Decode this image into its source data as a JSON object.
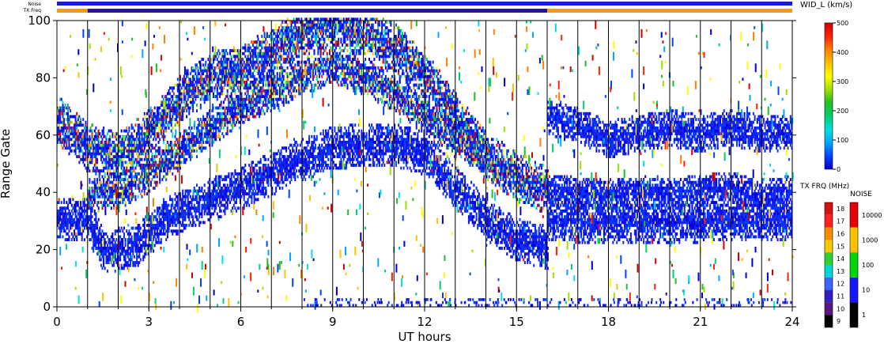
{
  "chart_data": {
    "type": "heatmap",
    "xlabel": "UT hours",
    "ylabel": "Range Gate",
    "xlim": [
      0,
      24
    ],
    "ylim": [
      0,
      100
    ],
    "x_ticks": [
      0,
      3,
      6,
      9,
      12,
      15,
      18,
      21,
      24
    ],
    "y_ticks": [
      0,
      20,
      40,
      60,
      80,
      100
    ],
    "scan_boundaries_hours": [
      1,
      2,
      3,
      4,
      5,
      6,
      7,
      8,
      9,
      10,
      11,
      12,
      13,
      14,
      15,
      16,
      17,
      18,
      19,
      20,
      21,
      22,
      23
    ],
    "grid": false,
    "status_bars": {
      "noise": {
        "label": "Noise",
        "segments": [
          {
            "start": 0,
            "end": 24,
            "color": "#1a1adf"
          }
        ]
      },
      "tx_freq": {
        "label": "TX Freq",
        "segments": [
          {
            "start": 0,
            "end": 1,
            "color": "#f59a14"
          },
          {
            "start": 1,
            "end": 16,
            "color": "#28139a"
          },
          {
            "start": 16,
            "end": 24,
            "color": "#f59a14"
          }
        ]
      }
    },
    "echo_bands": [
      {
        "name": "band-low",
        "points": [
          [
            0,
            30
          ],
          [
            1,
            30
          ],
          [
            1.5,
            19
          ],
          [
            2.5,
            20
          ],
          [
            3.5,
            30
          ],
          [
            5,
            37
          ],
          [
            6,
            41
          ],
          [
            7,
            46
          ],
          [
            8,
            51
          ],
          [
            9,
            55
          ],
          [
            10,
            56
          ],
          [
            11,
            56
          ],
          [
            12,
            53
          ],
          [
            13,
            41
          ],
          [
            14,
            30
          ],
          [
            15,
            23
          ],
          [
            16,
            20
          ]
        ],
        "width": 7
      },
      {
        "name": "band-upper",
        "points": [
          [
            0,
            65
          ],
          [
            1,
            55
          ],
          [
            2,
            52
          ],
          [
            3,
            60
          ],
          [
            4,
            72
          ],
          [
            5,
            80
          ],
          [
            6,
            82
          ],
          [
            7,
            88
          ],
          [
            8,
            96
          ],
          [
            9,
            98
          ],
          [
            10,
            95
          ],
          [
            11,
            90
          ],
          [
            12,
            80
          ],
          [
            13,
            66
          ],
          [
            14,
            52
          ],
          [
            15,
            45
          ],
          [
            16,
            40
          ]
        ],
        "width": 8
      },
      {
        "name": "band-mid",
        "points": [
          [
            1,
            38
          ],
          [
            2,
            40
          ],
          [
            3,
            46
          ],
          [
            4,
            54
          ],
          [
            5,
            62
          ],
          [
            6,
            70
          ],
          [
            7,
            74
          ],
          [
            8,
            80
          ],
          [
            9,
            84
          ],
          [
            10,
            80
          ],
          [
            11,
            74
          ],
          [
            12,
            66
          ],
          [
            13,
            58
          ],
          [
            14,
            52
          ]
        ],
        "width": 6
      },
      {
        "name": "band-night-a",
        "points": [
          [
            16,
            30
          ],
          [
            18,
            29
          ],
          [
            20,
            29
          ],
          [
            22,
            30
          ],
          [
            24,
            30
          ]
        ],
        "width": 7
      },
      {
        "name": "band-night-b",
        "points": [
          [
            16,
            40
          ],
          [
            18,
            39
          ],
          [
            20,
            39
          ],
          [
            22,
            41
          ],
          [
            23,
            38
          ],
          [
            24,
            40
          ]
        ],
        "width": 5
      },
      {
        "name": "band-night-c",
        "points": [
          [
            16,
            66
          ],
          [
            17,
            63
          ],
          [
            18,
            58
          ],
          [
            19,
            60
          ],
          [
            20,
            62
          ],
          [
            21,
            60
          ],
          [
            22,
            62
          ],
          [
            23,
            60
          ],
          [
            24,
            60
          ]
        ],
        "width": 6
      }
    ],
    "colorbars": [
      {
        "title": "WID_L (km/s)",
        "type": "continuous",
        "range": [
          0,
          500
        ],
        "ticks": [
          "500",
          "400",
          "300",
          "200",
          "100",
          "0"
        ],
        "gradient": [
          "#0000c8",
          "#0044ff",
          "#00a8ff",
          "#00e0e0",
          "#00d070",
          "#20c020",
          "#a0e000",
          "#ffff00",
          "#ffc000",
          "#ff8000",
          "#ff2000",
          "#d00000"
        ]
      },
      {
        "title": "TX FRQ (MHz)",
        "type": "discrete",
        "labels": [
          "18",
          "17",
          "16",
          "15",
          "14",
          "13",
          "12",
          "11",
          "10",
          "9"
        ],
        "colors": [
          "#d81010",
          "#ff2020",
          "#ff8c00",
          "#ffc800",
          "#30d030",
          "#00d8d8",
          "#3c64ff",
          "#3020c0",
          "#581880",
          "#000000"
        ]
      },
      {
        "title": "NOISE",
        "type": "discrete",
        "labels": [
          "10000",
          "1000",
          "100",
          "10",
          "1"
        ],
        "colors": [
          "#e80000",
          "#ffc000",
          "#00d800",
          "#1414ff",
          "#000000"
        ]
      }
    ]
  }
}
